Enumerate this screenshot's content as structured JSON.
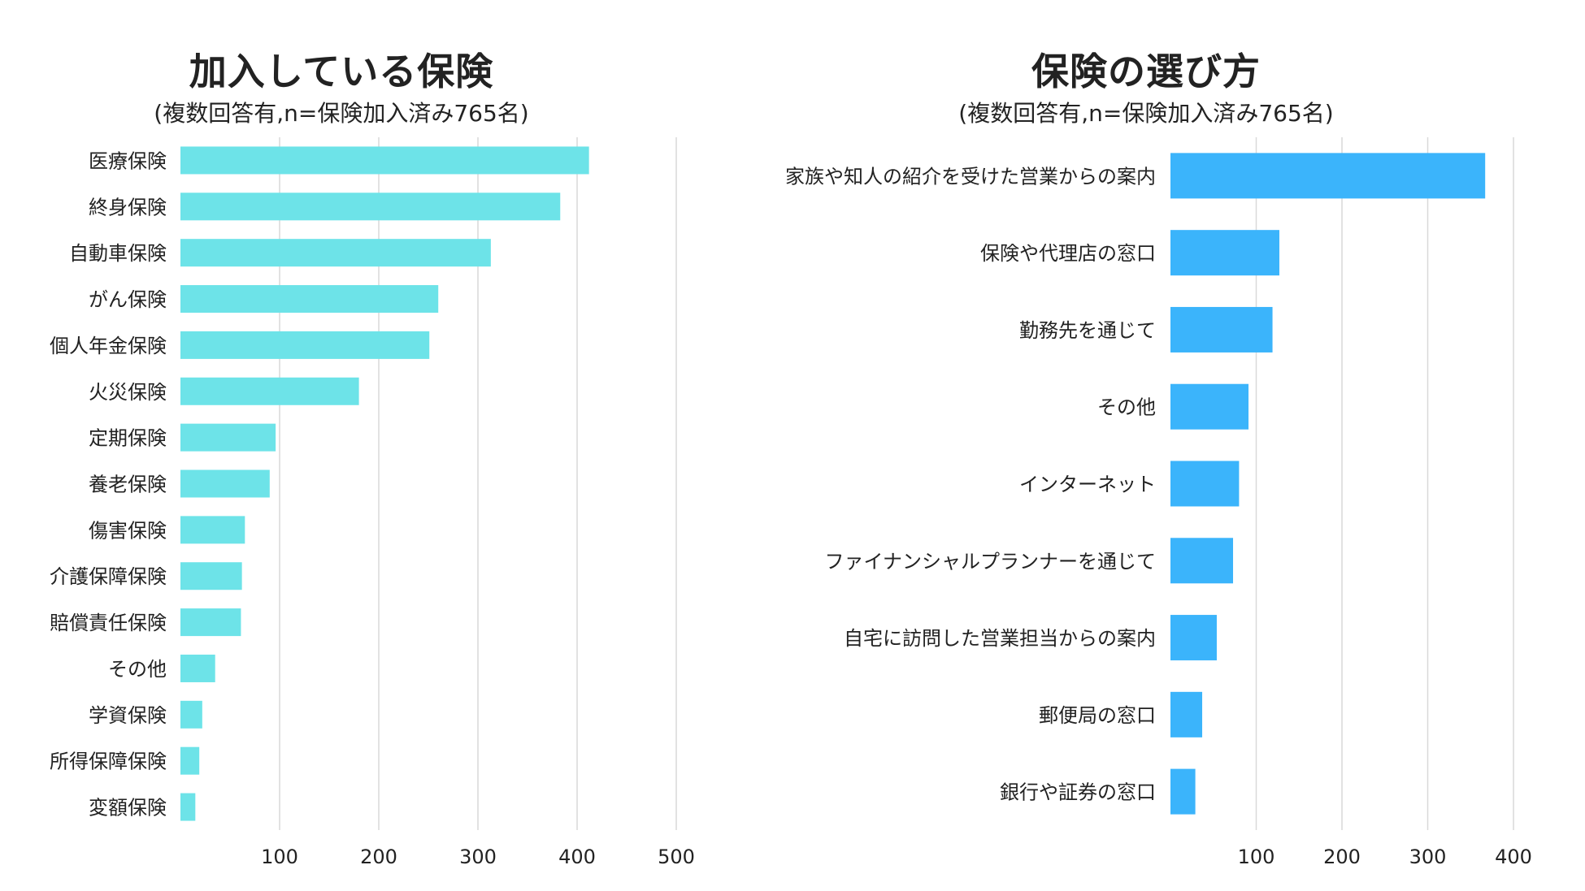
{
  "chart_data": [
    {
      "type": "bar",
      "orientation": "horizontal",
      "title": "加入している保険",
      "subtitle": "(複数回答有,n=保険加入済み765名)",
      "categories": [
        "医療保険",
        "終身保険",
        "自動車保険",
        "がん保険",
        "個人年金保険",
        "火災保険",
        "定期保険",
        "養老保険",
        "傷害保険",
        "介護保障保険",
        "賠償責任保険",
        "その他",
        "学資保険",
        "所得保障保険",
        "変額保険"
      ],
      "values": [
        412,
        383,
        313,
        260,
        251,
        180,
        96,
        90,
        65,
        62,
        61,
        35,
        22,
        19,
        15
      ],
      "xticks": [
        100,
        200,
        300,
        400,
        500
      ],
      "xlim": [
        0,
        500
      ],
      "grid": true,
      "color": "#6de3e8"
    },
    {
      "type": "bar",
      "orientation": "horizontal",
      "title": "保険の選び方",
      "subtitle": "(複数回答有,n=保険加入済み765名)",
      "categories": [
        "家族や知人の紹介を受けた営業からの案内",
        "保険や代理店の窓口",
        "勤務先を通じて",
        "その他",
        "インターネット",
        "ファイナンシャルプランナーを通じて",
        "自宅に訪問した営業担当からの案内",
        "郵便局の窓口",
        "銀行や証券の窓口"
      ],
      "values": [
        367,
        127,
        119,
        91,
        80,
        73,
        54,
        37,
        29
      ],
      "xticks": [
        100,
        200,
        300,
        400
      ],
      "xlim": [
        0,
        400
      ],
      "grid": true,
      "color": "#3bb4fb"
    }
  ]
}
